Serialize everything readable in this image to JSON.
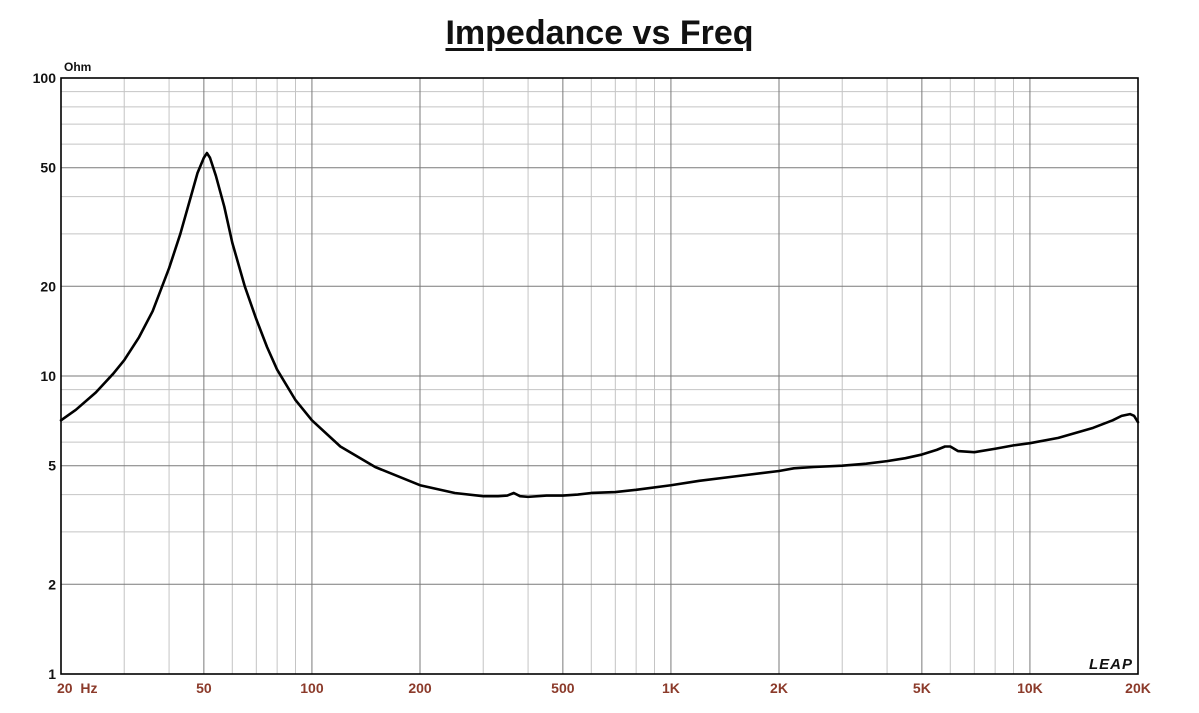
{
  "chart_data": {
    "type": "line",
    "title": "Impedance vs Freq",
    "ylabel": "Ohm",
    "xlabel": "",
    "x_scale": "log",
    "y_scale": "log",
    "xlim": [
      20,
      20000
    ],
    "ylim": [
      1,
      100
    ],
    "grid": true,
    "x_ticks": [
      {
        "value": 20,
        "label": "20  Hz"
      },
      {
        "value": 50,
        "label": "50"
      },
      {
        "value": 100,
        "label": "100"
      },
      {
        "value": 200,
        "label": "200"
      },
      {
        "value": 500,
        "label": "500"
      },
      {
        "value": 1000,
        "label": "1K"
      },
      {
        "value": 2000,
        "label": "2K"
      },
      {
        "value": 5000,
        "label": "5K"
      },
      {
        "value": 10000,
        "label": "10K"
      },
      {
        "value": 20000,
        "label": "20K"
      }
    ],
    "y_ticks": [
      {
        "value": 1,
        "label": "1"
      },
      {
        "value": 2,
        "label": "2"
      },
      {
        "value": 5,
        "label": "5"
      },
      {
        "value": 10,
        "label": "10"
      },
      {
        "value": 20,
        "label": "20"
      },
      {
        "value": 50,
        "label": "50"
      },
      {
        "value": 100,
        "label": "100"
      }
    ],
    "series": [
      {
        "x": [
          20,
          22,
          25,
          28,
          30,
          33,
          36,
          40,
          43,
          46,
          48,
          50,
          51,
          52,
          54,
          57,
          60,
          65,
          70,
          75,
          80,
          90,
          100,
          120,
          150,
          200,
          250,
          300,
          330,
          350,
          365,
          380,
          400,
          450,
          500,
          550,
          600,
          700,
          800,
          1000,
          1200,
          1500,
          2000,
          2200,
          2500,
          3000,
          3500,
          4000,
          4500,
          5000,
          5500,
          5800,
          6000,
          6300,
          7000,
          8000,
          9000,
          10000,
          12000,
          15000,
          17000,
          18000,
          19000,
          19500,
          20000
        ],
        "y": [
          7.1,
          7.7,
          8.8,
          10.2,
          11.3,
          13.5,
          16.5,
          23,
          30,
          40,
          48,
          54,
          56,
          54,
          47,
          37,
          28,
          20,
          15.5,
          12.5,
          10.5,
          8.3,
          7.1,
          5.8,
          4.95,
          4.3,
          4.05,
          3.95,
          3.95,
          3.97,
          4.05,
          3.95,
          3.93,
          3.97,
          3.97,
          4.0,
          4.05,
          4.08,
          4.15,
          4.3,
          4.45,
          4.6,
          4.8,
          4.9,
          4.95,
          5.0,
          5.08,
          5.18,
          5.3,
          5.45,
          5.65,
          5.8,
          5.8,
          5.6,
          5.55,
          5.7,
          5.85,
          5.95,
          6.2,
          6.7,
          7.1,
          7.35,
          7.45,
          7.35,
          7.0
        ]
      }
    ],
    "brand_text": "LEAP"
  },
  "colors": {
    "curve": "#000000",
    "grid_major": "#7a7a7a",
    "grid_minor": "#c4c4c4",
    "x_tick_label": "#8b3a2a",
    "frame": "#000000"
  }
}
